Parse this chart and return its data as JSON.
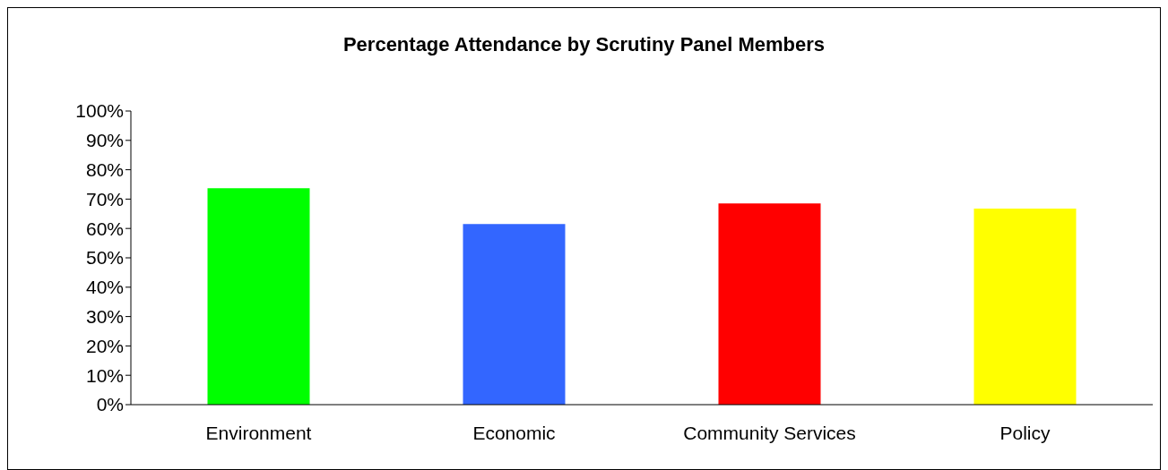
{
  "chart_data": {
    "type": "bar",
    "title": "Percentage Attendance by Scrutiny Panel Members",
    "categories": [
      "Environment",
      "Economic",
      "Community Services",
      "Policy"
    ],
    "values": [
      73.7,
      61.5,
      68.5,
      66.8
    ],
    "colors": [
      "#00ff00",
      "#3366ff",
      "#ff0000",
      "#ffff00"
    ],
    "ylim": [
      0,
      100
    ],
    "yticks": [
      {
        "value": 0,
        "label": "0%"
      },
      {
        "value": 10,
        "label": "10%"
      },
      {
        "value": 20,
        "label": "20%"
      },
      {
        "value": 30,
        "label": "30%"
      },
      {
        "value": 40,
        "label": "40%"
      },
      {
        "value": 50,
        "label": "50%"
      },
      {
        "value": 60,
        "label": "60%"
      },
      {
        "value": 70,
        "label": "70%"
      },
      {
        "value": 80,
        "label": "80%"
      },
      {
        "value": 90,
        "label": "90%"
      },
      {
        "value": 100,
        "label": "100%"
      }
    ],
    "grid": false,
    "legend": false
  }
}
